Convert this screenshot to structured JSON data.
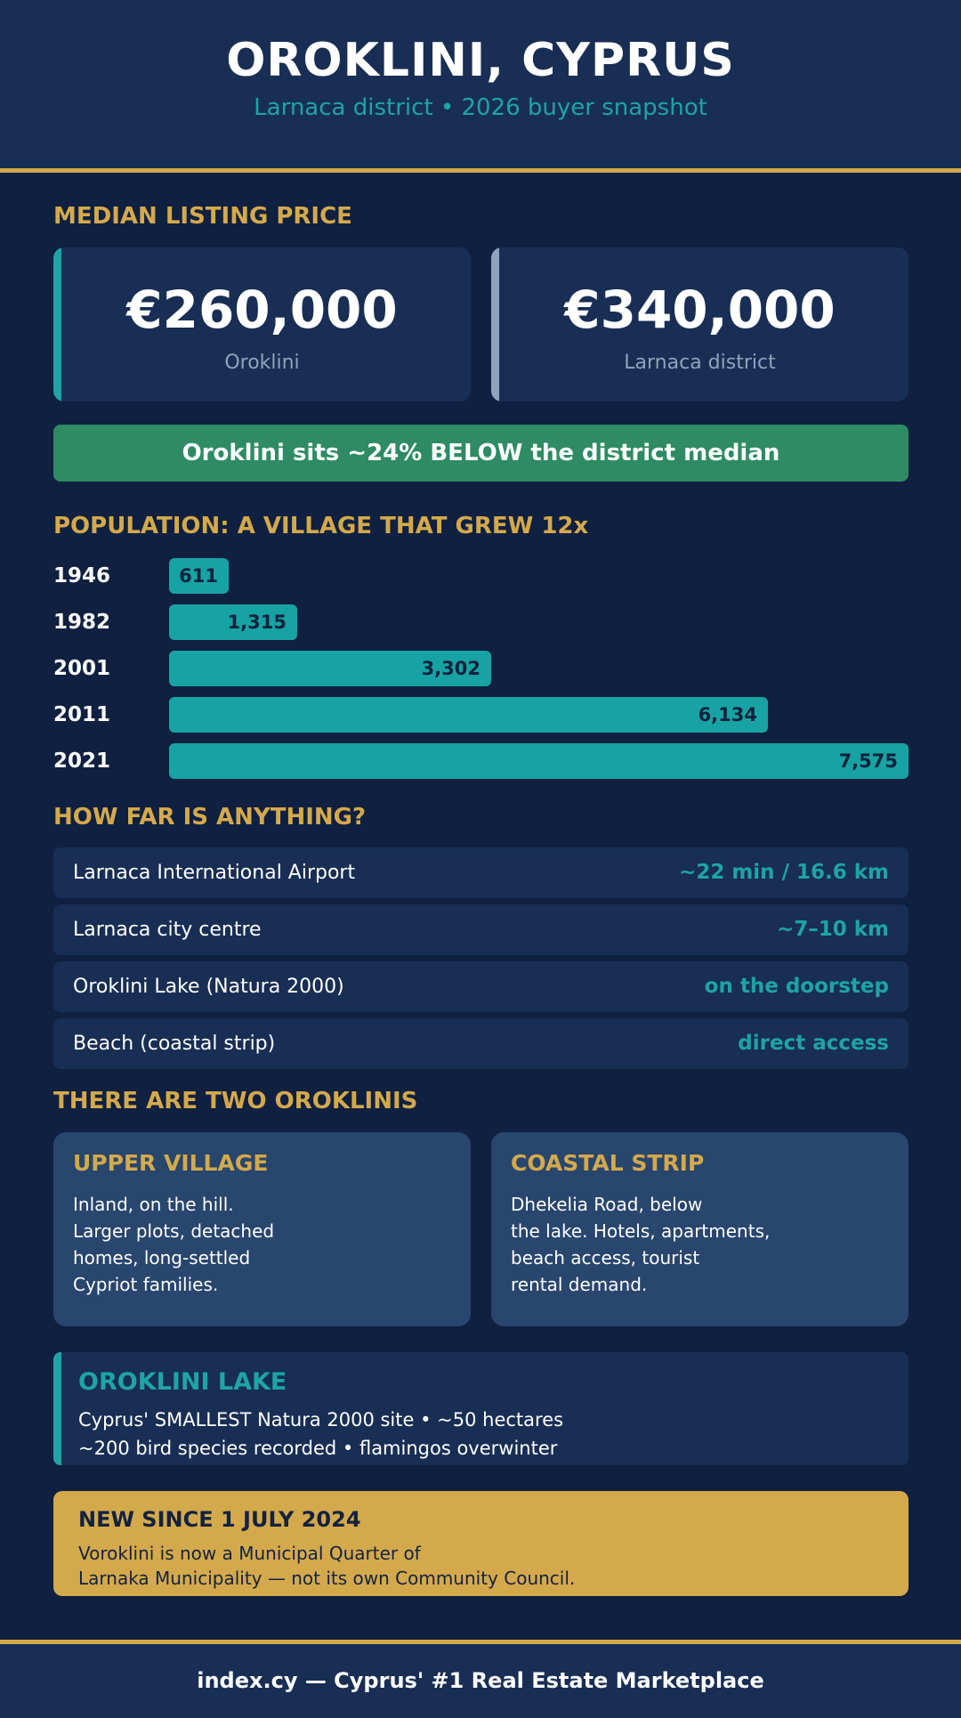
{
  "header": {
    "title": "OROKLINI, CYPRUS",
    "subtitle": "Larnaca district  •  2026 buyer snapshot"
  },
  "median_price": {
    "heading": "MEDIAN LISTING PRICE",
    "cards": [
      {
        "value": "€260,000",
        "label": "Oroklini",
        "accent_color": "#1ea4a4"
      },
      {
        "value": "€340,000",
        "label": "Larnaca district",
        "accent_color": "#8fa3bc"
      }
    ],
    "comparison": "Oroklini sits ~24% BELOW the district median"
  },
  "population": {
    "heading": "POPULATION: A VILLAGE THAT GREW 12x",
    "max": 7575,
    "rows": [
      {
        "year": "1946",
        "value": 611,
        "label": "611"
      },
      {
        "year": "1982",
        "value": 1315,
        "label": "1,315"
      },
      {
        "year": "2001",
        "value": 3302,
        "label": "3,302"
      },
      {
        "year": "2011",
        "value": 6134,
        "label": "6,134"
      },
      {
        "year": "2021",
        "value": 7575,
        "label": "7,575"
      }
    ]
  },
  "distances": {
    "heading": "HOW FAR IS ANYTHING?",
    "rows": [
      {
        "place": "Larnaca International Airport",
        "distance": "~22 min  /  16.6 km"
      },
      {
        "place": "Larnaca city centre",
        "distance": "~7–10 km"
      },
      {
        "place": "Oroklini Lake (Natura 2000)",
        "distance": "on the doorstep"
      },
      {
        "place": "Beach (coastal strip)",
        "distance": "direct access"
      }
    ]
  },
  "areas": {
    "heading": "THERE ARE TWO OROKLINIS",
    "cards": [
      {
        "title": "UPPER VILLAGE",
        "lines": [
          "Inland, on the hill.",
          "Larger plots, detached",
          "homes, long-settled",
          "Cypriot families."
        ]
      },
      {
        "title": "COASTAL STRIP",
        "lines": [
          "Dhekelia Road, below",
          "the lake. Hotels, apartments,",
          "beach access, tourist",
          "rental demand."
        ]
      }
    ]
  },
  "lake": {
    "title": "OROKLINI LAKE",
    "line1": "Cyprus' SMALLEST Natura 2000 site  •  ~50 hectares",
    "line2": "~200 bird species recorded  •  flamingos overwinter"
  },
  "notice": {
    "title": "NEW SINCE 1 JULY 2024",
    "line1": "Voroklini is now a Municipal Quarter of",
    "line2": "Larnaka Municipality — not its own Community Council."
  },
  "footer": {
    "text": "index.cy  —  Cyprus' #1 Real Estate Marketplace"
  },
  "colors": {
    "background": "#0f2040",
    "panel": "#182e54",
    "gold": "#d4a94c",
    "teal": "#1ea4a4",
    "green": "#2e8b63"
  }
}
